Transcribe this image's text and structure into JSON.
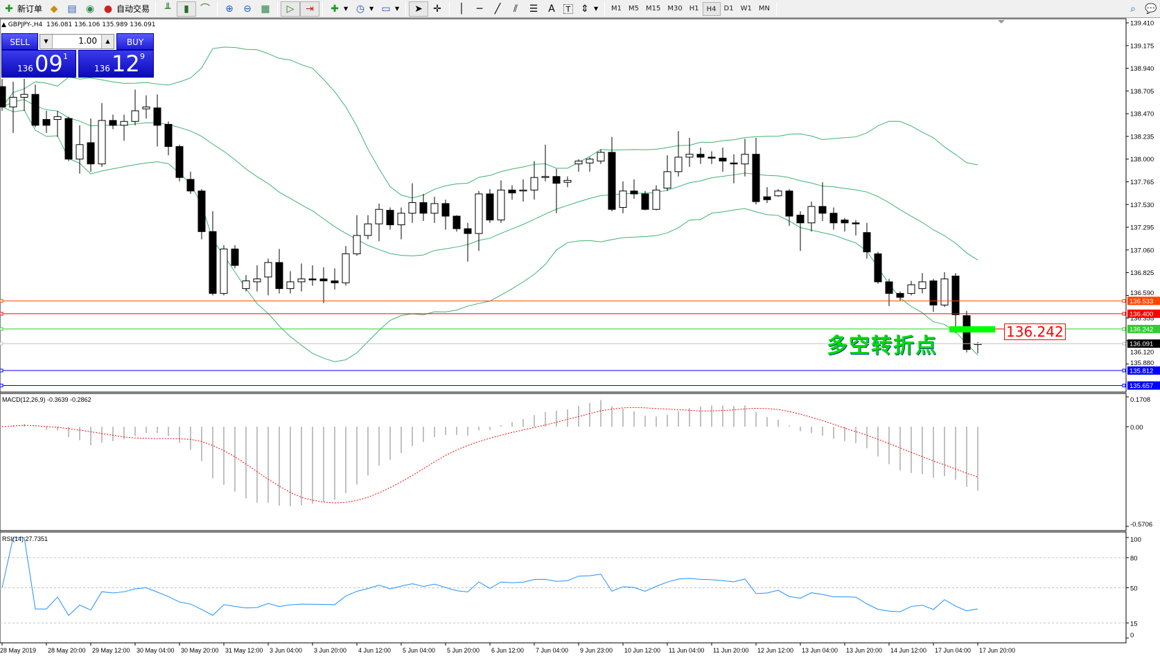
{
  "toolbar": {
    "new_order": "新订单",
    "auto_trading": "自动交易",
    "timeframes": [
      "M1",
      "M5",
      "M15",
      "M30",
      "H1",
      "H4",
      "D1",
      "W1",
      "MN"
    ],
    "active_timeframe": "H4",
    "text_tool": "A",
    "label_tool": "T"
  },
  "chart_header": {
    "symbol": "GBPJPY-,H4",
    "ohlc": "136.081 136.106 135.989 136.091"
  },
  "one_click": {
    "sell_label": "SELL",
    "buy_label": "BUY",
    "lot": "1.00",
    "sell_prefix": "136",
    "sell_big": "09",
    "sell_pip": "1",
    "buy_prefix": "136",
    "buy_big": "12",
    "buy_pip": "9"
  },
  "annotation": {
    "text": "多空转折点",
    "price_label": "136.242",
    "color": "#00dd00"
  },
  "price_axis": [
    "139.410",
    "139.175",
    "138.940",
    "138.705",
    "138.470",
    "138.235",
    "138.000",
    "137.765",
    "137.530",
    "137.295",
    "137.060",
    "136.825",
    "136.590",
    "136.355",
    "136.120",
    "135.880"
  ],
  "price_lines": [
    {
      "price": "136.533",
      "color": "#ff4500"
    },
    {
      "price": "136.400",
      "color": "#ff0000"
    },
    {
      "price": "136.242",
      "color": "#32cd32"
    },
    {
      "price": "136.091",
      "color": "#000000",
      "line": "#c0c0c0"
    },
    {
      "price": "135.812",
      "color": "#0000ff"
    },
    {
      "price": "135.657",
      "color": "#0000ff"
    }
  ],
  "macd": {
    "label": "MACD(12,26,9) -0.3639 -0.2862",
    "axis": [
      "0.1708",
      "0.00",
      "-0.5706"
    ],
    "max": 0.1708,
    "min": -0.5706
  },
  "rsi": {
    "label": "RSI(14) 27.7351",
    "axis": [
      "100",
      "80",
      "50",
      "15",
      "0"
    ],
    "levels": [
      80,
      50,
      15
    ],
    "color": "#1e90ff"
  },
  "time_axis": [
    "28 May 2019",
    "28 May 20:00",
    "29 May 12:00",
    "30 May 04:00",
    "30 May 20:00",
    "31 May 12:00",
    "3 Jun 04:00",
    "3 Jun 20:00",
    "4 Jun 12:00",
    "5 Jun 04:00",
    "5 Jun 20:00",
    "6 Jun 12:00",
    "7 Jun 04:00",
    "9 Jun 23:00",
    "10 Jun 12:00",
    "11 Jun 04:00",
    "11 Jun 20:00",
    "12 Jun 12:00",
    "13 Jun 04:00",
    "13 Jun 20:00",
    "14 Jun 12:00",
    "17 Jun 04:00",
    "17 Jun 20:00"
  ],
  "chart_data": {
    "type": "candlestick",
    "ylim": [
      135.657,
      139.41
    ],
    "bollinger_color": "#3cb371",
    "ohlc": [
      [
        138.75,
        138.83,
        138.5,
        138.54
      ],
      [
        138.54,
        138.8,
        138.27,
        138.64
      ],
      [
        138.64,
        138.83,
        138.5,
        138.67
      ],
      [
        138.67,
        138.77,
        138.33,
        138.35
      ],
      [
        138.41,
        138.5,
        138.27,
        138.35
      ],
      [
        138.41,
        138.5,
        138.23,
        138.44
      ],
      [
        138.42,
        138.44,
        137.98,
        138.0
      ],
      [
        138.0,
        138.35,
        137.85,
        138.15
      ],
      [
        138.17,
        138.42,
        137.87,
        137.95
      ],
      [
        137.95,
        138.58,
        137.92,
        138.4
      ],
      [
        138.4,
        138.46,
        138.31,
        138.35
      ],
      [
        138.35,
        138.46,
        138.19,
        138.39
      ],
      [
        138.39,
        138.72,
        138.35,
        138.5
      ],
      [
        138.52,
        138.66,
        138.42,
        138.54
      ],
      [
        138.53,
        138.67,
        138.13,
        138.35
      ],
      [
        138.36,
        138.39,
        138.04,
        138.13
      ],
      [
        138.13,
        138.15,
        137.77,
        137.81
      ],
      [
        137.79,
        137.87,
        137.64,
        137.67
      ],
      [
        137.67,
        137.69,
        137.17,
        137.25
      ],
      [
        137.25,
        137.46,
        136.59,
        136.61
      ],
      [
        136.61,
        137.11,
        136.59,
        137.07
      ],
      [
        137.07,
        137.11,
        136.87,
        136.9
      ],
      [
        136.66,
        136.8,
        136.63,
        136.74
      ],
      [
        136.73,
        136.9,
        136.63,
        136.76
      ],
      [
        136.78,
        136.97,
        136.59,
        136.93
      ],
      [
        136.93,
        137.07,
        136.61,
        136.66
      ],
      [
        136.66,
        136.84,
        136.61,
        136.73
      ],
      [
        136.73,
        136.92,
        136.63,
        136.76
      ],
      [
        136.76,
        136.9,
        136.69,
        136.75
      ],
      [
        136.76,
        136.88,
        136.51,
        136.74
      ],
      [
        136.74,
        136.87,
        136.65,
        136.72
      ],
      [
        136.72,
        137.1,
        136.69,
        137.02
      ],
      [
        137.02,
        137.42,
        137.0,
        137.21
      ],
      [
        137.21,
        137.42,
        137.17,
        137.33
      ],
      [
        137.33,
        137.54,
        137.15,
        137.48
      ],
      [
        137.47,
        137.5,
        137.27,
        137.32
      ],
      [
        137.32,
        137.5,
        137.17,
        137.44
      ],
      [
        137.44,
        137.75,
        137.34,
        137.55
      ],
      [
        137.55,
        137.64,
        137.36,
        137.44
      ],
      [
        137.44,
        137.61,
        137.34,
        137.54
      ],
      [
        137.54,
        137.58,
        137.27,
        137.41
      ],
      [
        137.41,
        137.42,
        137.25,
        137.28
      ],
      [
        137.28,
        137.34,
        136.94,
        137.23
      ],
      [
        137.23,
        137.67,
        137.05,
        137.64
      ],
      [
        137.64,
        137.69,
        137.34,
        137.37
      ],
      [
        137.37,
        137.78,
        137.34,
        137.68
      ],
      [
        137.68,
        137.73,
        137.58,
        137.65
      ],
      [
        137.67,
        137.79,
        137.56,
        137.68
      ],
      [
        137.68,
        137.98,
        137.58,
        137.81
      ],
      [
        137.81,
        138.15,
        137.77,
        137.82
      ],
      [
        137.82,
        137.9,
        137.44,
        137.75
      ],
      [
        137.76,
        137.82,
        137.71,
        137.78
      ],
      [
        137.95,
        138.0,
        137.87,
        137.98
      ],
      [
        137.96,
        138.02,
        137.87,
        138.0
      ],
      [
        137.98,
        138.1,
        137.95,
        138.07
      ],
      [
        138.07,
        138.23,
        137.46,
        137.48
      ],
      [
        137.5,
        137.77,
        137.44,
        137.67
      ],
      [
        137.67,
        137.79,
        137.59,
        137.64
      ],
      [
        137.64,
        137.67,
        137.47,
        137.48
      ],
      [
        137.48,
        137.73,
        137.47,
        137.68
      ],
      [
        137.7,
        138.04,
        137.67,
        137.87
      ],
      [
        137.87,
        138.29,
        137.82,
        138.02
      ],
      [
        138.02,
        138.22,
        137.92,
        138.05
      ],
      [
        138.05,
        138.12,
        137.95,
        138.02
      ],
      [
        138.02,
        138.08,
        137.95,
        138.01
      ],
      [
        138.01,
        138.12,
        137.87,
        137.98
      ],
      [
        137.96,
        138.05,
        137.75,
        137.95
      ],
      [
        137.95,
        138.21,
        137.82,
        138.05
      ],
      [
        138.05,
        138.22,
        137.53,
        137.56
      ],
      [
        137.61,
        137.71,
        137.545,
        137.58
      ],
      [
        137.62,
        137.69,
        137.61,
        137.67
      ],
      [
        137.67,
        137.69,
        137.31,
        137.41
      ],
      [
        137.42,
        137.46,
        137.05,
        137.34
      ],
      [
        137.34,
        137.56,
        137.25,
        137.51
      ],
      [
        137.51,
        137.76,
        137.36,
        137.44
      ],
      [
        137.44,
        137.5,
        137.27,
        137.34
      ],
      [
        137.37,
        137.39,
        137.25,
        137.34
      ],
      [
        137.34,
        137.37,
        137.21,
        137.33
      ],
      [
        137.24,
        137.34,
        136.97,
        137.04
      ],
      [
        137.02,
        137.04,
        136.71,
        136.73
      ],
      [
        136.73,
        136.76,
        136.48,
        136.61
      ],
      [
        136.61,
        136.63,
        136.53,
        136.57
      ],
      [
        136.61,
        136.74,
        136.59,
        136.7
      ],
      [
        136.66,
        136.82,
        136.61,
        136.73
      ],
      [
        136.74,
        136.76,
        136.42,
        136.49
      ],
      [
        136.49,
        136.83,
        136.47,
        136.76
      ],
      [
        136.79,
        136.82,
        136.2,
        136.39
      ],
      [
        136.38,
        136.43,
        136.0,
        136.03
      ],
      [
        136.081,
        136.106,
        135.989,
        136.091
      ]
    ]
  }
}
